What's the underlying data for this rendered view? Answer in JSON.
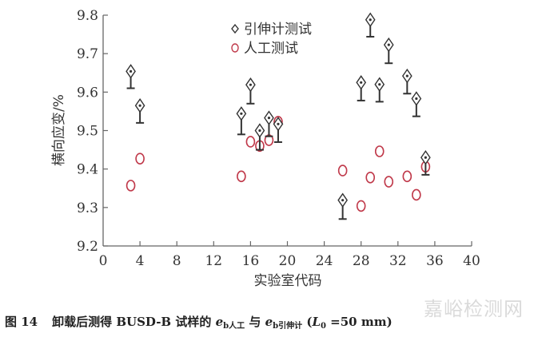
{
  "chart_data": {
    "type": "scatter",
    "title": "",
    "xlabel": "实验室代码",
    "ylabel": "横向应变/%",
    "xlim": [
      0,
      40
    ],
    "ylim": [
      9.2,
      9.8
    ],
    "xticks": [
      0,
      4,
      8,
      12,
      16,
      20,
      24,
      28,
      32,
      36,
      40
    ],
    "yticks": [
      9.2,
      9.3,
      9.4,
      9.5,
      9.6,
      9.7,
      9.8
    ],
    "ytick_labels": [
      "9.2",
      "9.3",
      "9.4",
      "9.5",
      "9.6",
      "9.7",
      "9.8"
    ],
    "grid": false,
    "legend_position": "top-center",
    "series": [
      {
        "name": "引伸计测试",
        "marker": "diamond-with-lower-error-bar",
        "color": "#333333",
        "points": [
          {
            "x": 3,
            "y": 9.654,
            "err_low": 9.61
          },
          {
            "x": 4,
            "y": 9.565,
            "err_low": 9.52
          },
          {
            "x": 15,
            "y": 9.544,
            "err_low": 9.49
          },
          {
            "x": 16,
            "y": 9.619,
            "err_low": 9.57
          },
          {
            "x": 17,
            "y": 9.5,
            "err_low": 9.45
          },
          {
            "x": 18,
            "y": 9.533,
            "err_low": 9.485
          },
          {
            "x": 19,
            "y": 9.517,
            "err_low": 9.47
          },
          {
            "x": 26,
            "y": 9.319,
            "err_low": 9.27
          },
          {
            "x": 28,
            "y": 9.625,
            "err_low": 9.578
          },
          {
            "x": 29,
            "y": 9.788,
            "err_low": 9.744
          },
          {
            "x": 30,
            "y": 9.62,
            "err_low": 9.575
          },
          {
            "x": 31,
            "y": 9.723,
            "err_low": 9.675
          },
          {
            "x": 33,
            "y": 9.642,
            "err_low": 9.596
          },
          {
            "x": 34,
            "y": 9.583,
            "err_low": 9.537
          },
          {
            "x": 35,
            "y": 9.43,
            "err_low": 9.385
          }
        ]
      },
      {
        "name": "人工测试",
        "marker": "circle",
        "color": "#c0394a",
        "points": [
          {
            "x": 3,
            "y": 9.357
          },
          {
            "x": 4,
            "y": 9.427
          },
          {
            "x": 15,
            "y": 9.381
          },
          {
            "x": 16,
            "y": 9.471
          },
          {
            "x": 17,
            "y": 9.46
          },
          {
            "x": 18,
            "y": 9.475
          },
          {
            "x": 19,
            "y": 9.523
          },
          {
            "x": 26,
            "y": 9.396
          },
          {
            "x": 28,
            "y": 9.304
          },
          {
            "x": 29,
            "y": 9.378
          },
          {
            "x": 30,
            "y": 9.446
          },
          {
            "x": 31,
            "y": 9.367
          },
          {
            "x": 33,
            "y": 9.381
          },
          {
            "x": 34,
            "y": 9.333
          },
          {
            "x": 35,
            "y": 9.406
          }
        ]
      }
    ]
  },
  "caption": {
    "figure_number": "图 14",
    "text_before": "卸载后测得 BUSD-B 试样的 ",
    "e1_symbol": "e",
    "e1_sub": "b人工",
    "connector": " 与 ",
    "e2_symbol": "e",
    "e2_sub": "b引伸计",
    "paren_open": " (",
    "L_symbol": "L",
    "L_sub": "0",
    "value": " =50 mm)"
  },
  "watermark": "嘉峪检测网",
  "colors": {
    "axis": "#666666",
    "extensometer": "#333333",
    "manual": "#c0394a"
  }
}
